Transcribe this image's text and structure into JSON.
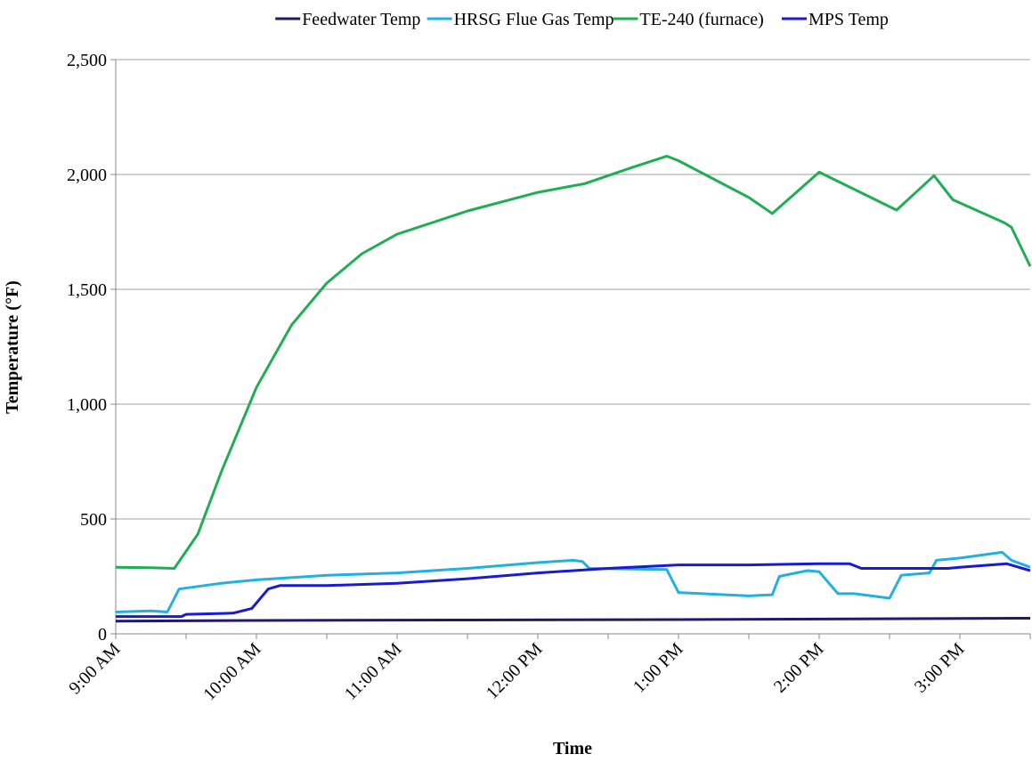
{
  "chart_data": {
    "type": "line",
    "y_label": "Temperature (°F)",
    "x_label": "Time",
    "xlim": [
      "9:00 AM",
      "3:30 PM"
    ],
    "xticks": [
      "9:00 AM",
      "10:00 AM",
      "11:00 AM",
      "12:00 PM",
      "1:00 PM",
      "2:00 PM",
      "3:00 PM"
    ],
    "ylim": [
      0,
      2500
    ],
    "yticks": [
      0,
      {
        "value": 500,
        "label": "500"
      },
      {
        "value": 1000,
        "label": "1,000"
      },
      {
        "value": 1500,
        "label": "1,500"
      },
      {
        "value": 2000,
        "label": "2,000"
      },
      {
        "value": 2500,
        "label": "2,500"
      }
    ],
    "grid": true,
    "legend": "top",
    "series": [
      {
        "name": "Feedwater Temp",
        "color": "#1f1a6b",
        "x": [
          "9:00 AM",
          "10:00 AM",
          "11:30 AM",
          "1:00 PM",
          "2:15 PM",
          "3:30 PM"
        ],
        "values": [
          55,
          58,
          60,
          62,
          65,
          68
        ]
      },
      {
        "name": "HRSG Flue Gas Temp",
        "color": "#22b0e0",
        "x": [
          "9:00 AM",
          "9:15 AM",
          "9:22 AM",
          "9:27 AM",
          "9:45 AM",
          "10:00 AM",
          "10:30 AM",
          "11:00 AM",
          "11:30 AM",
          "12:00 PM",
          "12:15 PM",
          "12:19 PM",
          "12:22 PM",
          "12:55 PM",
          "1:00 PM",
          "1:30 PM",
          "1:40 PM",
          "1:43 PM",
          "1:55 PM",
          "2:00 PM",
          "2:08 PM",
          "2:15 PM",
          "2:30 PM",
          "2:35 PM",
          "2:47 PM",
          "2:50 PM",
          "3:00 PM",
          "3:18 PM",
          "3:22 PM",
          "3:30 PM"
        ],
        "values": [
          95,
          100,
          95,
          195,
          220,
          235,
          255,
          265,
          285,
          310,
          320,
          315,
          285,
          280,
          180,
          165,
          170,
          250,
          275,
          270,
          175,
          175,
          155,
          255,
          265,
          320,
          330,
          355,
          320,
          290
        ]
      },
      {
        "name": "TE-240 (furnace)",
        "color": "#1fae54",
        "x": [
          "9:00 AM",
          "9:15 AM",
          "9:25 AM",
          "9:35 AM",
          "9:45 AM",
          "10:00 AM",
          "10:15 AM",
          "10:30 AM",
          "10:45 AM",
          "11:00 AM",
          "11:30 AM",
          "12:00 PM",
          "12:20 PM",
          "12:40 PM",
          "12:55 PM",
          "1:00 PM",
          "1:30 PM",
          "1:40 PM",
          "2:00 PM",
          "2:33 PM",
          "2:49 PM",
          "2:57 PM",
          "3:19 PM",
          "3:22 PM",
          "3:30 PM"
        ],
        "values": [
          290,
          288,
          285,
          434,
          705,
          1073,
          1345,
          1527,
          1655,
          1740,
          1841,
          1922,
          1960,
          2030,
          2080,
          2060,
          1900,
          1830,
          2010,
          1845,
          1995,
          1890,
          1790,
          1770,
          1600
        ]
      },
      {
        "name": "MPS Temp",
        "color": "#1a1ad0",
        "x": [
          "9:00 AM",
          "9:28 AM",
          "9:30 AM",
          "9:50 AM",
          "9:58 AM",
          "10:05 AM",
          "10:10 AM",
          "10:30 AM",
          "11:00 AM",
          "11:30 AM",
          "12:00 PM",
          "12:30 PM",
          "1:00 PM",
          "1:30 PM",
          "2:00 PM",
          "2:13 PM",
          "2:18 PM",
          "2:55 PM",
          "3:00 PM",
          "3:20 PM",
          "3:30 PM"
        ],
        "values": [
          75,
          75,
          85,
          90,
          110,
          195,
          210,
          210,
          220,
          240,
          265,
          285,
          300,
          300,
          305,
          305,
          285,
          285,
          290,
          305,
          275
        ]
      }
    ]
  }
}
